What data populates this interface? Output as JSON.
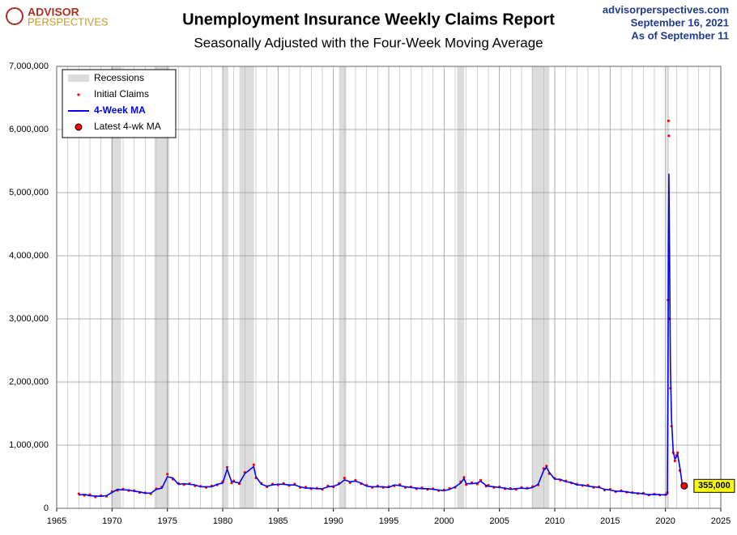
{
  "brand": [
    "ADVISOR",
    "PERSPECTIVES"
  ],
  "site": "advisorperspectives.com",
  "date": "September 16, 2021",
  "as_of": "As of September 11",
  "chart_data": {
    "type": "line",
    "title": "Unemployment Insurance Weekly Claims Report",
    "subtitle": "Seasonally Adjusted with the Four-Week Moving Average",
    "xlim": [
      1965,
      2025
    ],
    "xticks": [
      1965,
      1970,
      1975,
      1980,
      1985,
      1990,
      1995,
      2000,
      2005,
      2010,
      2015,
      2020,
      2025
    ],
    "ylim": [
      0,
      7000000
    ],
    "yticks": [
      0,
      {
        "value": 1000000,
        "label": "1,000,000"
      },
      {
        "value": 2000000,
        "label": "2,000,000"
      },
      {
        "value": 3000000,
        "label": "3,000,000"
      },
      {
        "value": 4000000,
        "label": "4,000,000"
      },
      {
        "value": 5000000,
        "label": "5,000,000"
      },
      {
        "value": 6000000,
        "label": "6,000,000"
      },
      {
        "value": 7000000,
        "label": "7,000,000"
      }
    ],
    "grid": true,
    "legend": "upper left",
    "recessions": {
      "name": "Recessions",
      "color": "#dcdcdc",
      "spans": [
        [
          1969.92,
          1970.83
        ],
        [
          1973.83,
          1975.17
        ],
        [
          1980.0,
          1980.5
        ],
        [
          1981.5,
          1982.83
        ],
        [
          1990.5,
          1991.17
        ],
        [
          2001.17,
          2001.83
        ],
        [
          2007.92,
          2009.5
        ],
        [
          2020.08,
          2020.33
        ]
      ]
    },
    "x": [
      1967.0,
      1967.5,
      1968.0,
      1968.5,
      1969.0,
      1969.5,
      1970.0,
      1970.5,
      1971.0,
      1971.5,
      1972.0,
      1972.5,
      1973.0,
      1973.5,
      1974.0,
      1974.5,
      1975.0,
      1975.5,
      1976.0,
      1976.5,
      1977.0,
      1977.5,
      1978.0,
      1978.5,
      1979.0,
      1979.5,
      1980.0,
      1980.4,
      1980.8,
      1981.0,
      1981.5,
      1982.0,
      1982.8,
      1983.0,
      1983.5,
      1984.0,
      1984.5,
      1985.0,
      1985.5,
      1986.0,
      1986.5,
      1987.0,
      1987.5,
      1988.0,
      1988.5,
      1989.0,
      1989.5,
      1990.0,
      1990.5,
      1991.0,
      1991.5,
      1992.0,
      1992.5,
      1993.0,
      1993.5,
      1994.0,
      1994.5,
      1995.0,
      1995.5,
      1996.0,
      1996.5,
      1997.0,
      1997.5,
      1998.0,
      1998.5,
      1999.0,
      1999.5,
      2000.0,
      2000.5,
      2001.0,
      2001.5,
      2001.8,
      2002.0,
      2002.5,
      2003.0,
      2003.3,
      2003.8,
      2004.0,
      2004.5,
      2005.0,
      2005.5,
      2006.0,
      2006.5,
      2007.0,
      2007.5,
      2008.0,
      2008.5,
      2009.0,
      2009.25,
      2009.5,
      2010.0,
      2010.5,
      2011.0,
      2011.5,
      2012.0,
      2012.5,
      2013.0,
      2013.5,
      2014.0,
      2014.5,
      2015.0,
      2015.5,
      2016.0,
      2016.5,
      2017.0,
      2017.5,
      2018.0,
      2018.5,
      2019.0,
      2019.5,
      2020.0,
      2020.17,
      2020.23,
      2020.27,
      2020.31,
      2020.38,
      2020.45,
      2020.55,
      2020.7,
      2020.85,
      2021.0,
      2021.1,
      2021.3,
      2021.5,
      2021.7
    ],
    "series": [
      {
        "name": "Initial Claims",
        "color": "#ff0000",
        "style": "dots",
        "values": [
          230000,
          205000,
          215000,
          180000,
          200000,
          190000,
          265000,
          285000,
          305000,
          280000,
          280000,
          250000,
          245000,
          230000,
          310000,
          335000,
          540000,
          460000,
          395000,
          375000,
          390000,
          355000,
          350000,
          330000,
          355000,
          370000,
          420000,
          650000,
          400000,
          435000,
          390000,
          570000,
          690000,
          480000,
          395000,
          340000,
          385000,
          370000,
          395000,
          360000,
          385000,
          330000,
          335000,
          310000,
          320000,
          300000,
          355000,
          340000,
          395000,
          480000,
          405000,
          445000,
          390000,
          365000,
          330000,
          355000,
          330000,
          345000,
          355000,
          375000,
          330000,
          340000,
          310000,
          325000,
          300000,
          310000,
          280000,
          290000,
          315000,
          330000,
          420000,
          490000,
          375000,
          405000,
          385000,
          445000,
          350000,
          365000,
          330000,
          340000,
          310000,
          315000,
          300000,
          330000,
          320000,
          345000,
          370000,
          630000,
          670000,
          550000,
          475000,
          445000,
          435000,
          400000,
          385000,
          360000,
          365000,
          330000,
          340000,
          290000,
          300000,
          265000,
          280000,
          255000,
          250000,
          235000,
          240000,
          210000,
          225000,
          210000,
          215000,
          250000,
          3300000,
          6137000,
          5900000,
          3000000,
          1900000,
          1300000,
          880000,
          750000,
          840000,
          880000,
          600000,
          380000,
          335000
        ]
      },
      {
        "name": "4-Week MA",
        "color": "#0000ff",
        "style": "line",
        "values": [
          210000,
          220000,
          200000,
          195000,
          190000,
          200000,
          250000,
          300000,
          290000,
          290000,
          270000,
          260000,
          240000,
          240000,
          300000,
          320000,
          500000,
          480000,
          380000,
          390000,
          380000,
          370000,
          340000,
          340000,
          340000,
          380000,
          400000,
          620000,
          420000,
          420000,
          400000,
          550000,
          660000,
          500000,
          380000,
          350000,
          370000,
          380000,
          380000,
          370000,
          370000,
          340000,
          320000,
          320000,
          310000,
          310000,
          340000,
          350000,
          380000,
          450000,
          420000,
          430000,
          400000,
          350000,
          340000,
          340000,
          340000,
          330000,
          370000,
          360000,
          340000,
          330000,
          320000,
          310000,
          310000,
          300000,
          290000,
          280000,
          300000,
          340000,
          400000,
          470000,
          390000,
          390000,
          400000,
          430000,
          360000,
          350000,
          340000,
          330000,
          320000,
          300000,
          310000,
          320000,
          310000,
          330000,
          380000,
          600000,
          650000,
          570000,
          460000,
          460000,
          420000,
          410000,
          370000,
          370000,
          350000,
          340000,
          330000,
          300000,
          290000,
          270000,
          270000,
          260000,
          245000,
          240000,
          230000,
          215000,
          220000,
          215000,
          212000,
          225000,
          2000000,
          4200000,
          5300000,
          3800000,
          2200000,
          1400000,
          900000,
          780000,
          820000,
          850000,
          650000,
          400000,
          355000
        ]
      }
    ],
    "latest": {
      "name": "Latest 4-wk MA",
      "color": "#ff0000",
      "x": 2021.7,
      "value": 355000,
      "label": "355,000",
      "label_color": "#ffff00"
    }
  }
}
